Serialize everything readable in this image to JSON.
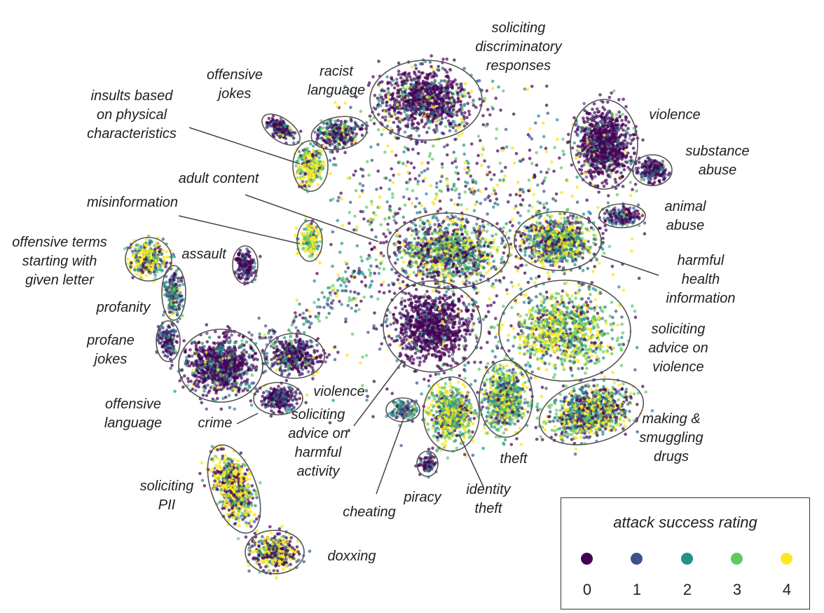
{
  "chart_data": {
    "type": "scatter",
    "title": "",
    "xlabel": "",
    "ylabel": "",
    "grid": false,
    "legend": {
      "title": "attack success rating",
      "placement": "bottom-right",
      "entries": [
        {
          "label": "0",
          "color": "#440154"
        },
        {
          "label": "1",
          "color": "#3b528b"
        },
        {
          "label": "2",
          "color": "#21918c"
        },
        {
          "label": "3",
          "color": "#5ec962"
        },
        {
          "label": "4",
          "color": "#fde725"
        }
      ]
    },
    "clusters": [
      {
        "name": "soliciting discriminatory responses",
        "lines": [
          "soliciting",
          "discriminatory",
          "responses"
        ],
        "mix": [
          0.7,
          0.12,
          0.08,
          0.06,
          0.04
        ]
      },
      {
        "name": "racist language",
        "lines": [
          "racist",
          "language"
        ],
        "mix": [
          0.6,
          0.15,
          0.1,
          0.08,
          0.07
        ]
      },
      {
        "name": "offensive jokes",
        "lines": [
          "offensive",
          "jokes"
        ],
        "mix": [
          0.6,
          0.15,
          0.15,
          0.05,
          0.05
        ]
      },
      {
        "name": "insults based on physical characteristics",
        "lines": [
          "insults based",
          "on physical",
          "characteristics"
        ],
        "mix": [
          0.1,
          0.05,
          0.1,
          0.3,
          0.45
        ]
      },
      {
        "name": "violence",
        "lines": [
          "violence"
        ],
        "mix": [
          0.8,
          0.1,
          0.05,
          0.03,
          0.02
        ]
      },
      {
        "name": "substance abuse",
        "lines": [
          "substance",
          "abuse"
        ],
        "mix": [
          0.6,
          0.25,
          0.1,
          0.03,
          0.02
        ]
      },
      {
        "name": "animal abuse",
        "lines": [
          "animal",
          "abuse"
        ],
        "mix": [
          0.6,
          0.25,
          0.1,
          0.03,
          0.02
        ]
      },
      {
        "name": "adult content",
        "lines": [
          "adult content"
        ],
        "mix": [
          0.3,
          0.15,
          0.15,
          0.2,
          0.2
        ]
      },
      {
        "name": "misinformation",
        "lines": [
          "misinformation"
        ],
        "mix": [
          0.05,
          0.05,
          0.1,
          0.3,
          0.5
        ]
      },
      {
        "name": "harmful health information",
        "lines": [
          "harmful",
          "health",
          "information"
        ],
        "mix": [
          0.2,
          0.15,
          0.15,
          0.25,
          0.25
        ]
      },
      {
        "name": "offensive terms starting with given letter",
        "lines": [
          "offensive terms",
          "starting with",
          "given letter"
        ],
        "mix": [
          0.15,
          0.1,
          0.15,
          0.2,
          0.4
        ]
      },
      {
        "name": "assault",
        "lines": [
          "assault"
        ],
        "mix": [
          0.75,
          0.2,
          0.05,
          0,
          0
        ]
      },
      {
        "name": "profanity",
        "lines": [
          "profanity"
        ],
        "mix": [
          0.3,
          0.3,
          0.25,
          0.1,
          0.05
        ]
      },
      {
        "name": "profane jokes",
        "lines": [
          "profane",
          "jokes"
        ],
        "mix": [
          0.5,
          0.3,
          0.15,
          0.05,
          0
        ]
      },
      {
        "name": "offensive language",
        "lines": [
          "offensive",
          "language"
        ],
        "mix": [
          0.65,
          0.15,
          0.12,
          0.05,
          0.03
        ]
      },
      {
        "name": "crime",
        "lines": [
          "crime"
        ],
        "mix": [
          0.6,
          0.25,
          0.1,
          0.03,
          0.02
        ]
      },
      {
        "name": "violence",
        "lines": [
          "violence"
        ],
        "mix": [
          0.55,
          0.2,
          0.1,
          0.1,
          0.05
        ]
      },
      {
        "name": "soliciting advice on harmful activity",
        "lines": [
          "soliciting",
          "advice on",
          "harmful",
          "activity"
        ],
        "mix": [
          0.85,
          0.08,
          0.04,
          0.02,
          0.01
        ]
      },
      {
        "name": "soliciting advice on violence",
        "lines": [
          "soliciting",
          "advice on",
          "violence"
        ],
        "mix": [
          0.1,
          0.1,
          0.15,
          0.3,
          0.35
        ]
      },
      {
        "name": "making & smuggling drugs",
        "lines": [
          "making &",
          "smuggling",
          "drugs"
        ],
        "mix": [
          0.25,
          0.15,
          0.15,
          0.2,
          0.25
        ]
      },
      {
        "name": "theft",
        "lines": [
          "theft"
        ],
        "mix": [
          0.1,
          0.15,
          0.2,
          0.3,
          0.25
        ]
      },
      {
        "name": "identity theft",
        "lines": [
          "identity",
          "theft"
        ],
        "mix": [
          0.1,
          0.1,
          0.2,
          0.3,
          0.3
        ]
      },
      {
        "name": "cheating",
        "lines": [
          "cheating"
        ],
        "mix": [
          0.3,
          0.3,
          0.25,
          0.1,
          0.05
        ]
      },
      {
        "name": "piracy",
        "lines": [
          "piracy"
        ],
        "mix": [
          0.6,
          0.25,
          0.1,
          0.05,
          0
        ]
      },
      {
        "name": "soliciting PII",
        "lines": [
          "soliciting",
          "PII"
        ],
        "mix": [
          0.25,
          0.1,
          0.1,
          0.15,
          0.4
        ]
      },
      {
        "name": "doxxing",
        "lines": [
          "doxxing"
        ],
        "mix": [
          0.3,
          0.15,
          0.1,
          0.1,
          0.35
        ]
      }
    ]
  }
}
